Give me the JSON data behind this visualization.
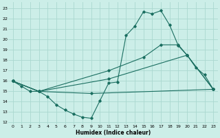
{
  "bg_color": "#cceee8",
  "grid_color": "#aad8d0",
  "line_color": "#1a6e60",
  "xlim": [
    -0.5,
    23.5
  ],
  "ylim": [
    11.8,
    23.6
  ],
  "yticks": [
    12,
    13,
    14,
    15,
    16,
    17,
    18,
    19,
    20,
    21,
    22,
    23
  ],
  "xticks": [
    0,
    1,
    2,
    3,
    4,
    5,
    6,
    7,
    8,
    9,
    10,
    11,
    12,
    13,
    14,
    15,
    16,
    17,
    18,
    19,
    20,
    21,
    22,
    23
  ],
  "xlabel": "Humidex (Indice chaleur)",
  "line1_x": [
    0,
    1,
    2,
    3,
    4,
    5,
    6,
    7,
    8,
    9,
    10,
    11,
    12,
    13,
    14,
    15,
    16,
    17,
    18,
    19,
    20,
    21,
    22,
    23
  ],
  "line1_y": [
    16.0,
    15.5,
    15.0,
    15.0,
    14.5,
    13.7,
    13.2,
    12.8,
    12.5,
    12.4,
    14.1,
    15.8,
    15.9,
    20.4,
    21.3,
    22.7,
    22.5,
    22.8,
    21.4,
    19.4,
    18.5,
    17.3,
    16.6,
    15.2
  ],
  "line2_x": [
    0,
    3,
    11,
    15,
    17,
    19,
    20,
    23
  ],
  "line2_y": [
    16.0,
    15.0,
    17.0,
    18.3,
    19.5,
    19.5,
    18.5,
    15.2
  ],
  "line3_x": [
    0,
    3,
    11,
    20,
    23
  ],
  "line3_y": [
    16.0,
    15.0,
    16.2,
    18.5,
    15.2
  ],
  "line4_x": [
    0,
    3,
    9,
    23
  ],
  "line4_y": [
    16.0,
    15.0,
    14.8,
    15.2
  ]
}
